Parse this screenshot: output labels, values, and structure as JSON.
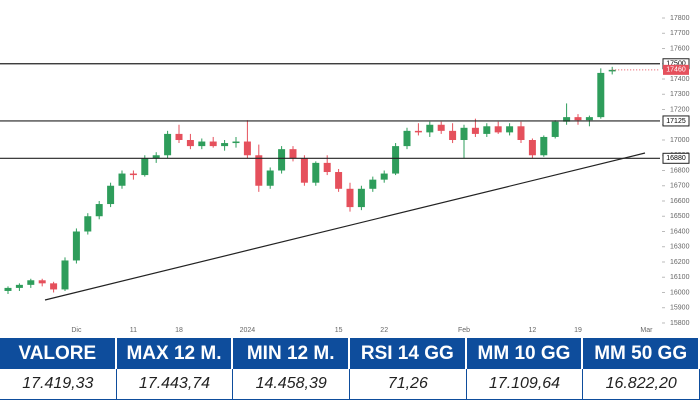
{
  "chart_data": {
    "type": "candlestick",
    "categories": [
      null,
      null,
      null,
      null,
      null,
      null,
      "Dic",
      null,
      null,
      null,
      null,
      "11",
      null,
      null,
      null,
      "18",
      null,
      null,
      null,
      null,
      null,
      "2024",
      null,
      null,
      null,
      null,
      null,
      null,
      null,
      "15",
      null,
      null,
      null,
      "22",
      null,
      null,
      null,
      null,
      null,
      null,
      "Feb",
      null,
      null,
      null,
      null,
      null,
      "12",
      null,
      null,
      null,
      "19",
      null,
      null,
      null,
      null,
      null,
      "Mar"
    ],
    "open": [
      16010,
      16030,
      16050,
      16080,
      16060,
      16020,
      16210,
      16400,
      16500,
      16580,
      16700,
      16780,
      16770,
      16880,
      16900,
      17040,
      17000,
      16960,
      16990,
      16960,
      16980,
      16990,
      16900,
      16700,
      16800,
      16940,
      16880,
      16720,
      16850,
      16790,
      16680,
      16560,
      16680,
      16740,
      16780,
      16960,
      17060,
      17050,
      17100,
      17060,
      17000,
      17080,
      17040,
      17090,
      17050,
      17090,
      17000,
      16900,
      17020,
      17120,
      17150,
      17130,
      17150,
      17450,
      null,
      null,
      null
    ],
    "high": [
      16040,
      16060,
      16090,
      16090,
      16070,
      16230,
      16420,
      16520,
      16600,
      16720,
      16800,
      16800,
      16900,
      16920,
      17060,
      17100,
      17040,
      17010,
      17020,
      17000,
      17020,
      17130,
      16970,
      16820,
      16960,
      16960,
      16900,
      16860,
      16900,
      16810,
      16720,
      16700,
      16760,
      16800,
      16980,
      17080,
      17110,
      17120,
      17120,
      17110,
      17100,
      17140,
      17110,
      17120,
      17110,
      17120,
      17010,
      17030,
      17130,
      17240,
      17170,
      17160,
      17470,
      17480,
      null,
      null,
      null
    ],
    "low": [
      15990,
      16010,
      16030,
      16040,
      16000,
      16010,
      16190,
      16380,
      16480,
      16560,
      16680,
      16740,
      16760,
      16850,
      16880,
      16980,
      16940,
      16940,
      16950,
      16930,
      16950,
      16880,
      16660,
      16680,
      16780,
      16860,
      16700,
      16700,
      16770,
      16660,
      16530,
      16540,
      16660,
      16720,
      16770,
      16940,
      17030,
      17020,
      17040,
      16980,
      16880,
      17020,
      17020,
      17040,
      17030,
      16980,
      16880,
      16890,
      17010,
      17100,
      17100,
      17090,
      17140,
      17430,
      null,
      null,
      null
    ],
    "close": [
      16030,
      16050,
      16080,
      16060,
      16020,
      16210,
      16400,
      16500,
      16580,
      16700,
      16780,
      16770,
      16880,
      16900,
      17040,
      17000,
      16960,
      16990,
      16960,
      16980,
      16990,
      16900,
      16700,
      16800,
      16940,
      16880,
      16720,
      16850,
      16790,
      16680,
      16560,
      16680,
      16740,
      16780,
      16960,
      17060,
      17050,
      17100,
      17060,
      17000,
      17080,
      17040,
      17090,
      17050,
      17090,
      17000,
      16900,
      17020,
      17120,
      17150,
      17130,
      17150,
      17440,
      17460,
      null,
      null,
      null
    ],
    "up_color": "#2e9d5b",
    "down_color": "#e5505c",
    "ylim": [
      15750,
      17850
    ],
    "yticks": [
      15800,
      15900,
      16000,
      16100,
      16200,
      16300,
      16400,
      16500,
      16600,
      16700,
      16800,
      16900,
      17000,
      17100,
      17200,
      17300,
      17400,
      17500,
      17600,
      17700,
      17800
    ],
    "levels": [
      17500,
      17125,
      16880
    ],
    "last_price": 17460
  },
  "table": {
    "headers": [
      "VALORE",
      "MAX 12 M.",
      "MIN 12 M.",
      "RSI 14 GG",
      "MM 10 GG",
      "MM 50 GG"
    ],
    "values": [
      "17.419,33",
      "17.443,74",
      "14.458,39",
      "71,26",
      "17.109,64",
      "16.822,20"
    ]
  }
}
